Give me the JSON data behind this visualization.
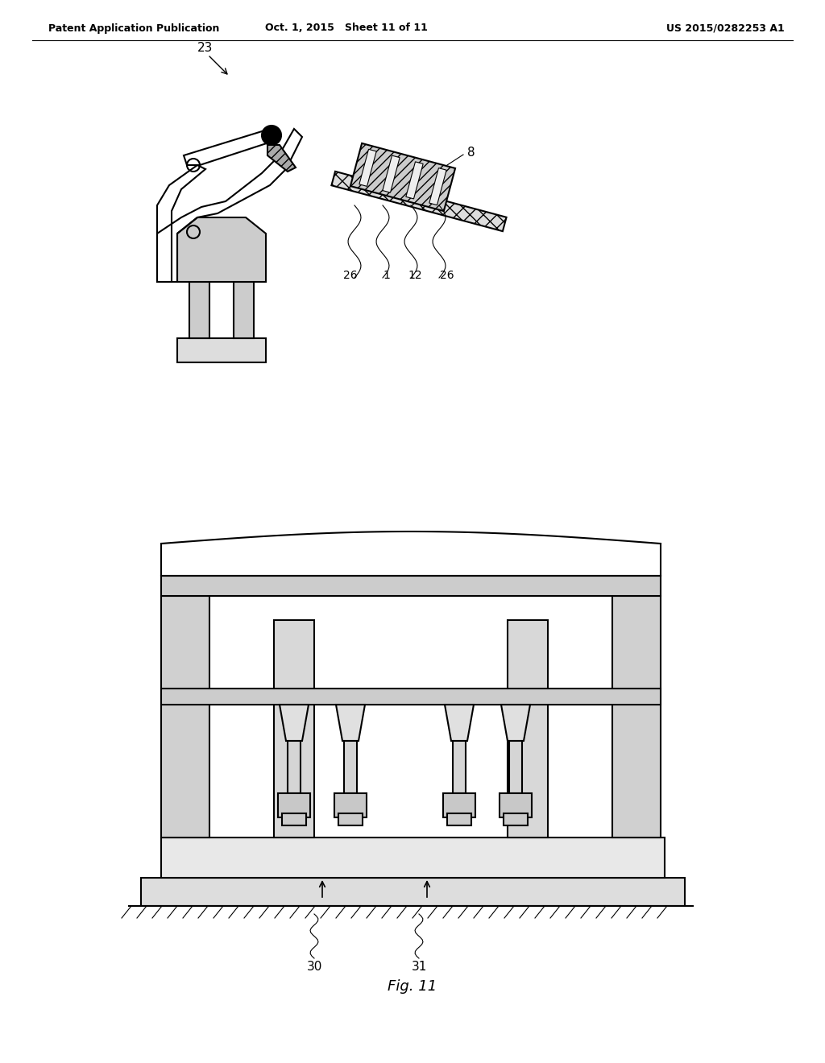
{
  "header_left": "Patent Application Publication",
  "header_mid": "Oct. 1, 2015   Sheet 11 of 11",
  "header_right": "US 2015/0282253 A1",
  "fig_label": "Fig. 11",
  "bg_color": "#ffffff",
  "line_color": "#000000",
  "hatch_color": "#555555",
  "label_23": "23",
  "label_8": "8",
  "label_26a": "26",
  "label_1": "1",
  "label_12": "12",
  "label_26b": "26",
  "label_30": "30",
  "label_31": "31"
}
